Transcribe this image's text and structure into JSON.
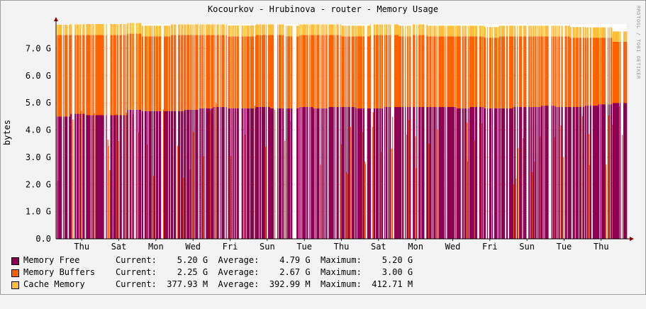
{
  "title": "Kocourkov - Hrubinova - router - Memory Usage",
  "credit": "RRDTOOL / TOBI OETIKER",
  "chart_data": {
    "type": "area",
    "title": "Kocourkov - Hrubinova - router - Memory Usage",
    "xlabel": "",
    "ylabel": "bytes",
    "ylim": [
      0,
      7.9
    ],
    "y_unit": "G",
    "y_ticks": [
      "0.0",
      "1.0 G",
      "2.0 G",
      "3.0 G",
      "4.0 G",
      "5.0 G",
      "6.0 G",
      "7.0 G"
    ],
    "x_ticks": [
      "Thu",
      "Sat",
      "Mon",
      "Wed",
      "Fri",
      "Sun",
      "Tue",
      "Thu",
      "Sat",
      "Mon",
      "Wed",
      "Fri",
      "Sun",
      "Tue",
      "Thu"
    ],
    "x_tick_pos": [
      1.8,
      4.4,
      7.0,
      9.6,
      12.2,
      14.8,
      17.4,
      20.0,
      22.6,
      25.2,
      27.8,
      30.4,
      33.0,
      35.6,
      38.2
    ],
    "x_days": 40,
    "grid": true,
    "stacked": true,
    "series": [
      {
        "name": "Memory Free",
        "color": "#8d0052",
        "typical_level": [
          4.5,
          4.6,
          4.55,
          4.55,
          4.55,
          4.75,
          4.7,
          4.7,
          4.7,
          4.75,
          4.8,
          4.85,
          4.8,
          4.8,
          4.85,
          4.8,
          4.8,
          4.85,
          4.8,
          4.85,
          4.85,
          4.8,
          4.8,
          4.85,
          4.85,
          4.85,
          4.85,
          4.85,
          4.8,
          4.85,
          4.8,
          4.8,
          4.85,
          4.85,
          4.9,
          4.85,
          4.85,
          4.9,
          4.95,
          5.0
        ]
      },
      {
        "name": "Memory Buffers",
        "color": "#ff6000",
        "typical_level": [
          3.0,
          2.9,
          2.95,
          2.95,
          2.95,
          2.8,
          2.75,
          2.75,
          2.8,
          2.75,
          2.7,
          2.65,
          2.65,
          2.65,
          2.65,
          2.7,
          2.65,
          2.65,
          2.7,
          2.65,
          2.6,
          2.65,
          2.7,
          2.65,
          2.6,
          2.65,
          2.6,
          2.6,
          2.65,
          2.6,
          2.6,
          2.65,
          2.6,
          2.6,
          2.55,
          2.6,
          2.55,
          2.5,
          2.45,
          2.25
        ]
      },
      {
        "name": "Cache Memory",
        "color": "#ffbe3c",
        "typical_level": [
          0.38,
          0.39,
          0.4,
          0.4,
          0.4,
          0.39,
          0.39,
          0.39,
          0.39,
          0.39,
          0.39,
          0.39,
          0.4,
          0.4,
          0.39,
          0.39,
          0.39,
          0.39,
          0.39,
          0.39,
          0.39,
          0.39,
          0.39,
          0.39,
          0.39,
          0.39,
          0.39,
          0.39,
          0.39,
          0.39,
          0.39,
          0.39,
          0.39,
          0.39,
          0.39,
          0.39,
          0.39,
          0.38,
          0.38,
          0.38
        ]
      }
    ]
  },
  "legend": [
    {
      "name": "Memory Free",
      "color": "#8d0052",
      "current": "5.20 G",
      "average": "4.79 G",
      "maximum": "5.20 G"
    },
    {
      "name": "Memory Buffers",
      "color": "#ff6000",
      "current": "2.25 G",
      "average": "2.67 G",
      "maximum": "3.00 G"
    },
    {
      "name": "Cache Memory",
      "color": "#ffbe3c",
      "current": "377.93 M",
      "average": "392.99 M",
      "maximum": "412.71 M"
    }
  ],
  "legend_labels": {
    "current": "Current:",
    "average": "Average:",
    "maximum": "Maximum:"
  }
}
